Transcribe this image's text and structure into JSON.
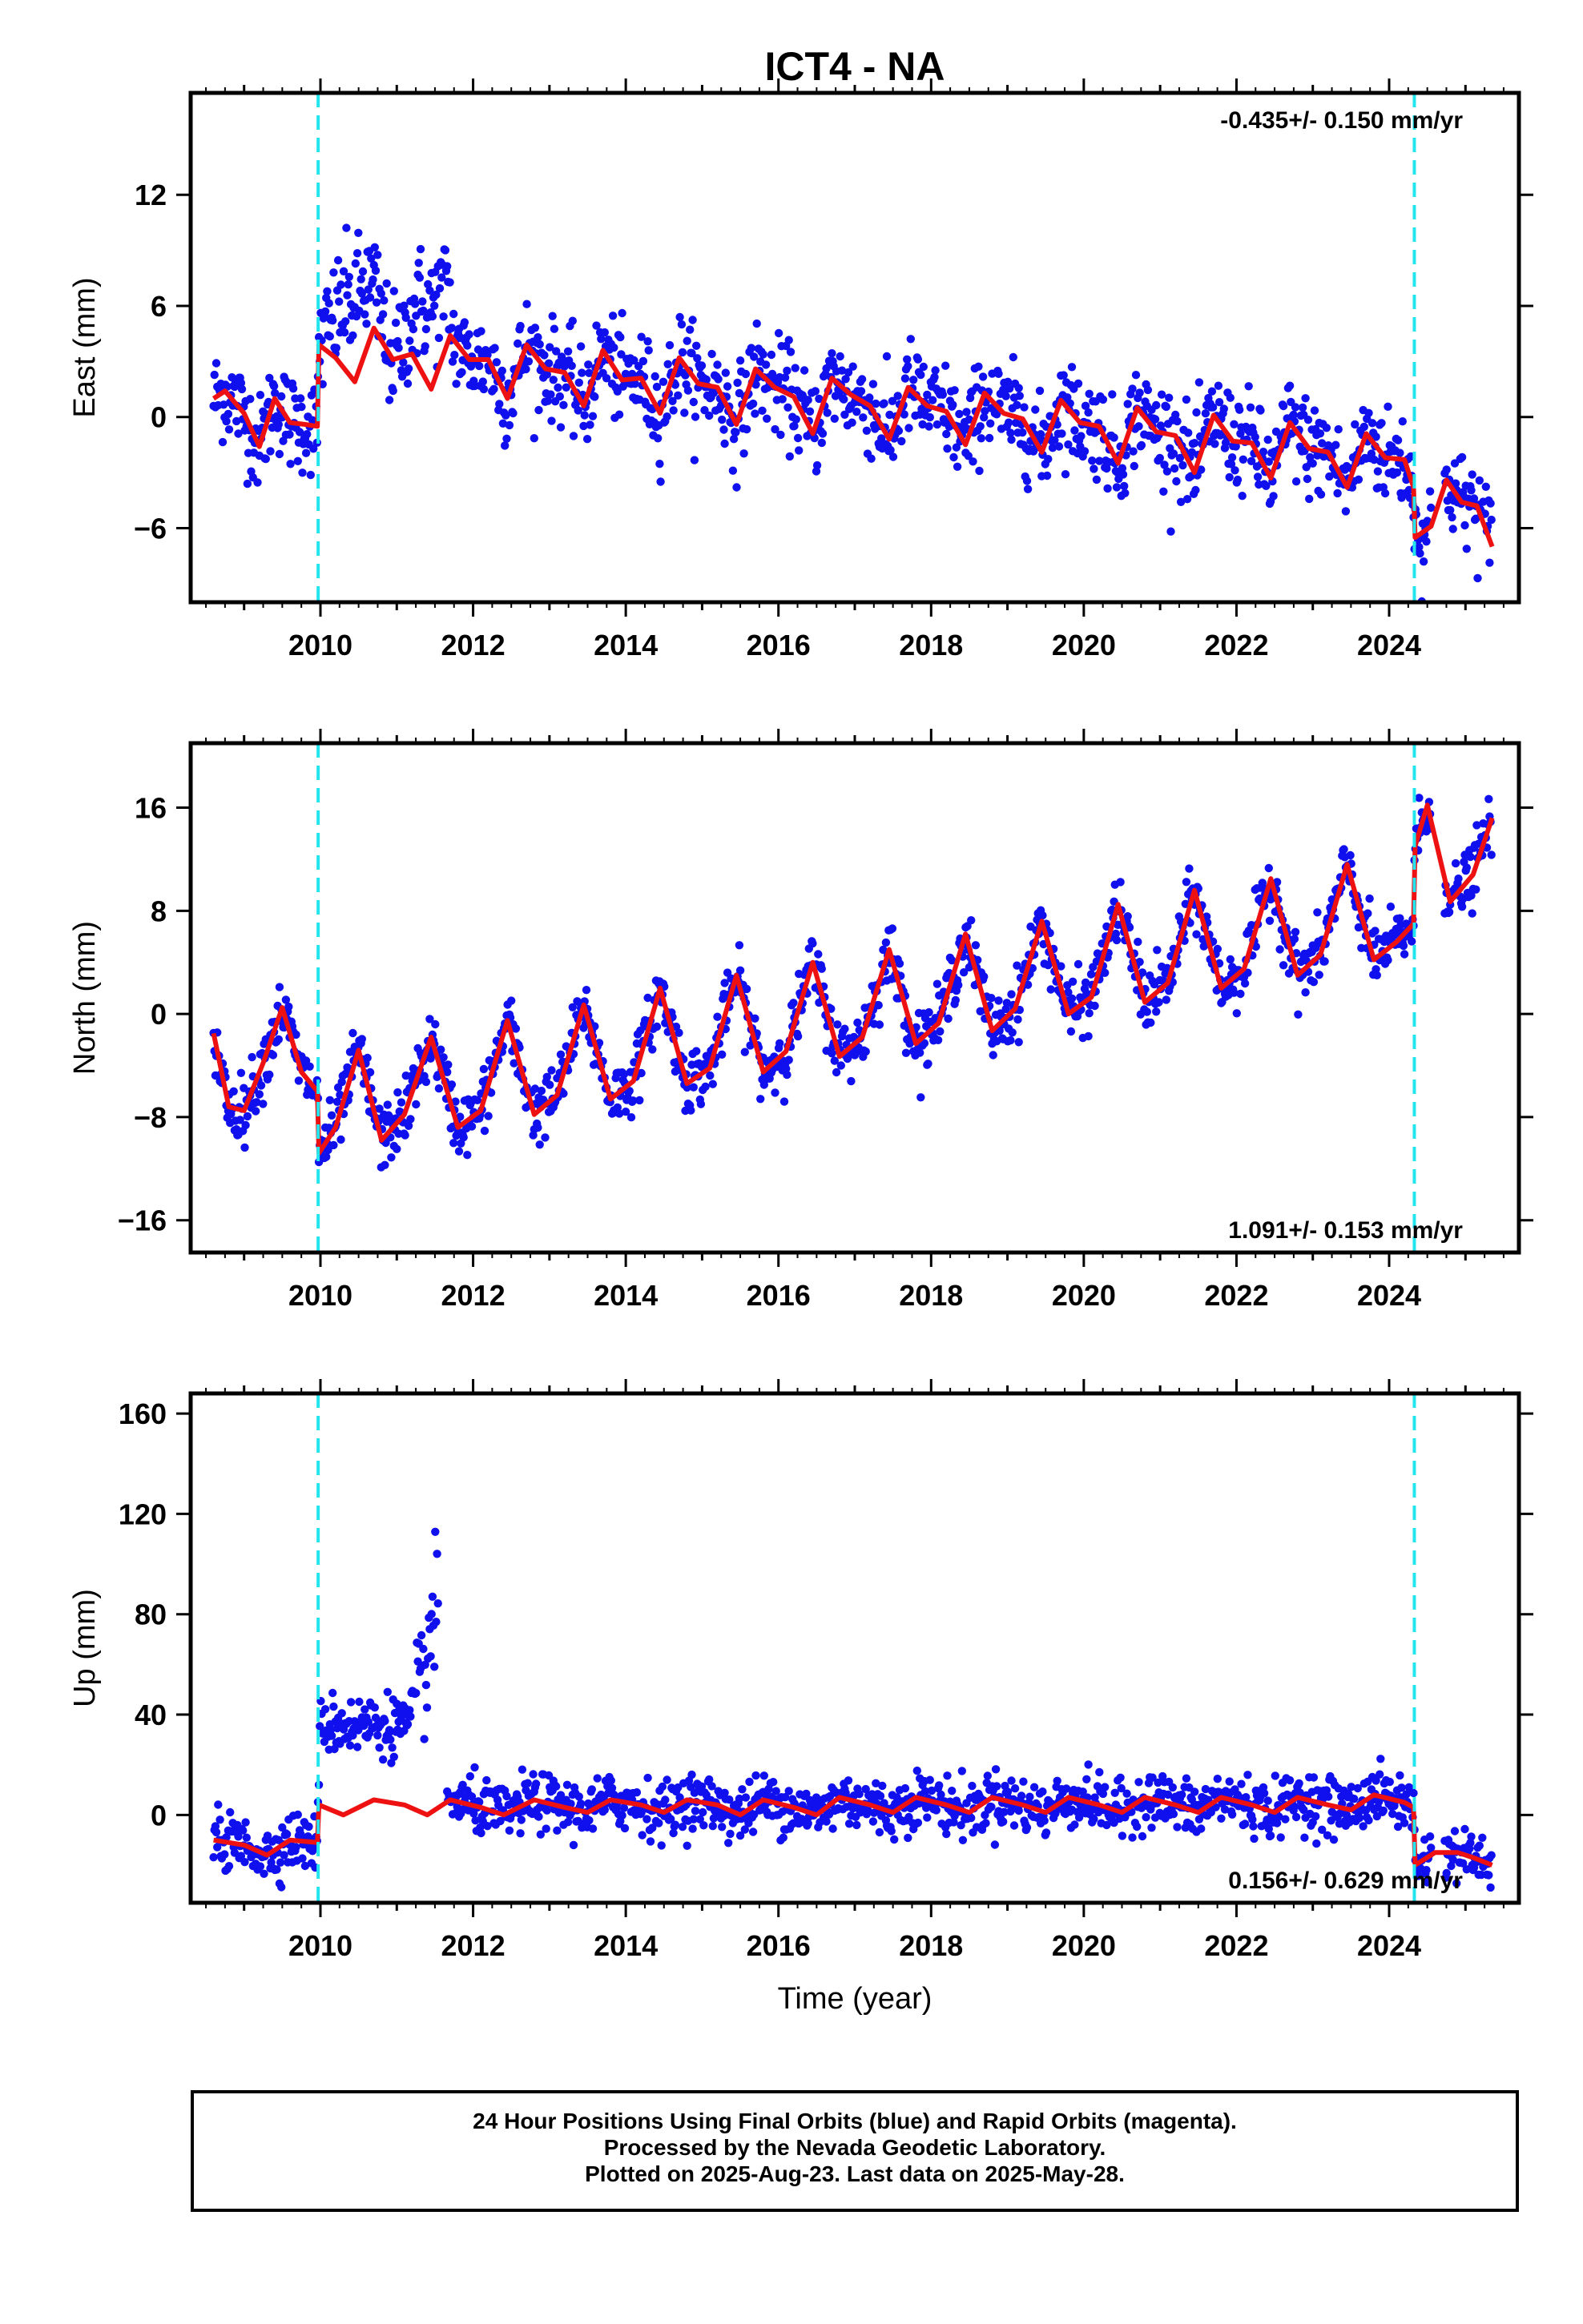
{
  "title": "ICT4 - NA",
  "footer": {
    "line1": "24 Hour Positions Using Final Orbits (blue) and Rapid Orbits (magenta).",
    "line2": "Processed by the Nevada Geodetic Laboratory.",
    "line3": "Plotted on 2025-Aug-23. Last data on 2025-May-28."
  },
  "colors": {
    "final_orbits": "#1010ee",
    "model": "#ee1111",
    "offset_lines": "#22e5ee",
    "axis": "#000000"
  },
  "chart_data": [
    {
      "type": "scatter",
      "panel": "east",
      "ylabel": "East (mm)",
      "xlabel": "",
      "xlim": [
        2008.3,
        2025.7
      ],
      "ylim": [
        -10,
        17.5
      ],
      "yticks": [
        -6,
        0,
        6,
        12
      ],
      "xticks": [
        2010,
        2012,
        2014,
        2016,
        2018,
        2020,
        2022,
        2024
      ],
      "rate_annotation": "-0.435+/- 0.150 mm/yr",
      "rate_position": "top-right",
      "offset_lines_x": [
        2009.97,
        2024.33
      ],
      "grid": false,
      "model": {
        "x": [
          2008.6,
          2008.75,
          2009.0,
          2009.2,
          2009.4,
          2009.6,
          2009.8,
          2009.96,
          2009.98,
          2010.2,
          2010.45,
          2010.7,
          2010.95,
          2011.2,
          2011.45,
          2011.7,
          2011.95,
          2012.2,
          2012.45,
          2012.7,
          2012.95,
          2013.2,
          2013.45,
          2013.7,
          2013.95,
          2014.2,
          2014.45,
          2014.7,
          2014.95,
          2015.2,
          2015.45,
          2015.7,
          2015.95,
          2016.2,
          2016.45,
          2016.7,
          2016.95,
          2017.2,
          2017.45,
          2017.7,
          2017.95,
          2018.2,
          2018.45,
          2018.7,
          2018.95,
          2019.2,
          2019.45,
          2019.7,
          2019.95,
          2020.2,
          2020.45,
          2020.7,
          2020.95,
          2021.2,
          2021.45,
          2021.7,
          2021.95,
          2022.2,
          2022.45,
          2022.7,
          2022.95,
          2023.2,
          2023.45,
          2023.7,
          2023.95,
          2024.2,
          2024.32,
          2024.34,
          2024.55,
          2024.75,
          2024.95,
          2025.15,
          2025.35
        ],
        "y": [
          1.0,
          1.4,
          0.2,
          -1.6,
          1.0,
          -0.3,
          -0.4,
          -0.5,
          3.9,
          3.2,
          1.9,
          4.8,
          3.1,
          3.4,
          1.5,
          4.4,
          3.1,
          3.1,
          1.0,
          3.9,
          2.6,
          2.4,
          0.6,
          3.6,
          2.0,
          2.1,
          0.2,
          3.2,
          1.8,
          1.6,
          -0.4,
          2.6,
          1.6,
          1.1,
          -0.9,
          2.1,
          1.2,
          0.6,
          -1.2,
          1.6,
          0.6,
          0.3,
          -1.5,
          1.3,
          0.2,
          -0.1,
          -1.9,
          0.9,
          -0.3,
          -0.5,
          -2.5,
          0.5,
          -0.8,
          -1.0,
          -3.0,
          0.1,
          -1.3,
          -1.4,
          -3.3,
          -0.3,
          -1.7,
          -1.9,
          -3.8,
          -0.9,
          -2.2,
          -2.3,
          -3.8,
          -6.5,
          -5.9,
          -3.4,
          -4.6,
          -4.8,
          -7.0
        ]
      }
    },
    {
      "type": "scatter",
      "panel": "north",
      "ylabel": "North (mm)",
      "xlabel": "",
      "xlim": [
        2008.3,
        2025.7
      ],
      "ylim": [
        -18.5,
        21
      ],
      "yticks": [
        -16,
        -8,
        0,
        8,
        16
      ],
      "xticks": [
        2010,
        2012,
        2014,
        2016,
        2018,
        2020,
        2022,
        2024
      ],
      "rate_annotation": "1.091+/- 0.153 mm/yr",
      "rate_position": "bottom-right",
      "offset_lines_x": [
        2009.97,
        2024.33
      ],
      "grid": false,
      "model": {
        "x": [
          2008.6,
          2008.8,
          2009.0,
          2009.25,
          2009.5,
          2009.75,
          2009.96,
          2009.98,
          2010.2,
          2010.5,
          2010.8,
          2011.1,
          2011.45,
          2011.8,
          2012.1,
          2012.45,
          2012.8,
          2013.1,
          2013.45,
          2013.8,
          2014.1,
          2014.45,
          2014.8,
          2015.1,
          2015.45,
          2015.8,
          2016.1,
          2016.45,
          2016.8,
          2017.1,
          2017.45,
          2017.8,
          2018.1,
          2018.45,
          2018.8,
          2019.1,
          2019.45,
          2019.8,
          2020.1,
          2020.45,
          2020.8,
          2021.1,
          2021.45,
          2021.8,
          2022.1,
          2022.45,
          2022.8,
          2023.1,
          2023.45,
          2023.8,
          2024.1,
          2024.32,
          2024.34,
          2024.5,
          2024.8,
          2025.1,
          2025.35
        ],
        "y": [
          -1.5,
          -7.2,
          -7.5,
          -3.8,
          0.5,
          -4.5,
          -6.0,
          -10.8,
          -8.8,
          -2.8,
          -9.8,
          -7.8,
          -1.8,
          -8.8,
          -7.5,
          -0.5,
          -7.8,
          -6.3,
          0.7,
          -6.6,
          -5.2,
          2.0,
          -5.4,
          -4.2,
          3.0,
          -4.5,
          -2.9,
          4.0,
          -3.3,
          -1.8,
          5.0,
          -2.3,
          -0.7,
          6.2,
          -1.3,
          0.4,
          7.2,
          0.0,
          1.3,
          8.5,
          0.9,
          2.4,
          9.6,
          2.0,
          3.5,
          10.5,
          3.0,
          4.6,
          11.6,
          4.2,
          5.6,
          7.0,
          13.0,
          16.2,
          8.7,
          10.8,
          15.2
        ]
      }
    },
    {
      "type": "scatter",
      "panel": "up",
      "ylabel": "Up (mm)",
      "xlabel": "Time (year)",
      "xlim": [
        2008.3,
        2025.7
      ],
      "ylim": [
        -35,
        168
      ],
      "yticks": [
        0,
        40,
        80,
        120,
        160
      ],
      "xticks": [
        2010,
        2012,
        2014,
        2016,
        2018,
        2020,
        2022,
        2024
      ],
      "rate_annotation": "0.156+/- 0.629 mm/yr",
      "rate_position": "bottom-right",
      "offset_lines_x": [
        2009.97,
        2024.33
      ],
      "grid": false,
      "model": {
        "x": [
          2008.6,
          2009.0,
          2009.3,
          2009.6,
          2009.96,
          2009.98,
          2010.3,
          2010.7,
          2011.1,
          2011.4,
          2011.7,
          2012.1,
          2012.4,
          2012.8,
          2013.2,
          2013.5,
          2013.8,
          2014.2,
          2014.5,
          2014.8,
          2015.2,
          2015.5,
          2015.8,
          2016.2,
          2016.5,
          2016.8,
          2017.2,
          2017.5,
          2017.8,
          2018.2,
          2018.5,
          2018.8,
          2019.2,
          2019.5,
          2019.8,
          2020.2,
          2020.5,
          2020.8,
          2021.2,
          2021.5,
          2021.8,
          2022.2,
          2022.5,
          2022.8,
          2023.2,
          2023.5,
          2023.8,
          2024.2,
          2024.32,
          2024.34,
          2024.6,
          2024.9,
          2025.1,
          2025.35
        ],
        "y": [
          -10,
          -12,
          -16,
          -10,
          -11,
          4,
          0,
          6,
          4,
          0,
          6,
          3,
          0,
          6,
          3,
          1,
          6,
          4,
          1,
          6,
          4,
          0,
          6,
          3,
          0,
          7,
          4,
          1,
          7,
          4,
          1,
          7,
          4,
          1,
          7,
          4,
          1,
          7,
          4,
          1,
          7,
          4,
          1,
          7,
          4,
          2,
          8,
          5,
          3,
          -20,
          -15,
          -15,
          -17,
          -20
        ]
      }
    }
  ]
}
